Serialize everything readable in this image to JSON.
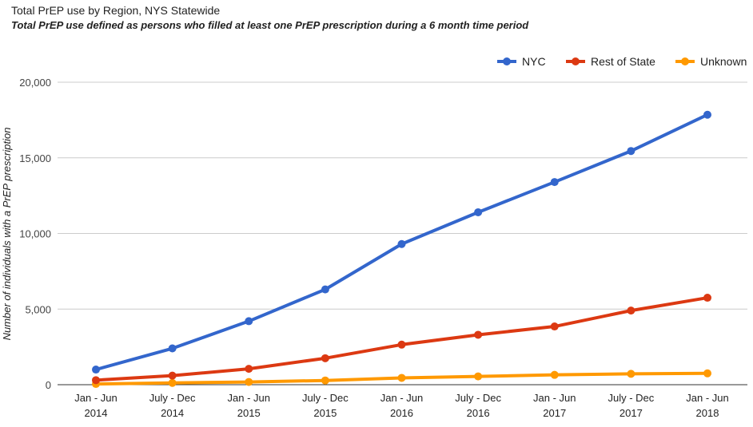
{
  "chart_data": {
    "type": "line",
    "title": "Total PrEP use by Region, NYS Statewide",
    "subtitle": "Total PrEP use defined as persons who filled at least one PrEP prescription during a 6 month time period",
    "xlabel": "",
    "ylabel": "Number of individuals with a PrEP prescription",
    "ylim": [
      0,
      20000
    ],
    "yticks": [
      "0",
      "5,000",
      "10,000",
      "15,000",
      "20,000"
    ],
    "ytick_values": [
      0,
      5000,
      10000,
      15000,
      20000
    ],
    "grid": true,
    "legend_position": "top-right",
    "categories": [
      [
        "Jan - Jun",
        "2014"
      ],
      [
        "July - Dec",
        "2014"
      ],
      [
        "Jan - Jun",
        "2015"
      ],
      [
        "July - Dec",
        "2015"
      ],
      [
        "Jan - Jun",
        "2016"
      ],
      [
        "July - Dec",
        "2016"
      ],
      [
        "Jan - Jun",
        "2017"
      ],
      [
        "July - Dec",
        "2017"
      ],
      [
        "Jan - Jun",
        "2018"
      ]
    ],
    "series": [
      {
        "name": "NYC",
        "color": "#3366cc",
        "values": [
          1000,
          2400,
          4200,
          6300,
          9300,
          11400,
          13400,
          15450,
          17850
        ]
      },
      {
        "name": "Rest of State",
        "color": "#dc3912",
        "values": [
          300,
          600,
          1050,
          1750,
          2650,
          3300,
          3850,
          4900,
          5750
        ]
      },
      {
        "name": "Unknown",
        "color": "#ff9900",
        "values": [
          50,
          120,
          180,
          280,
          450,
          550,
          650,
          720,
          750
        ]
      }
    ]
  }
}
